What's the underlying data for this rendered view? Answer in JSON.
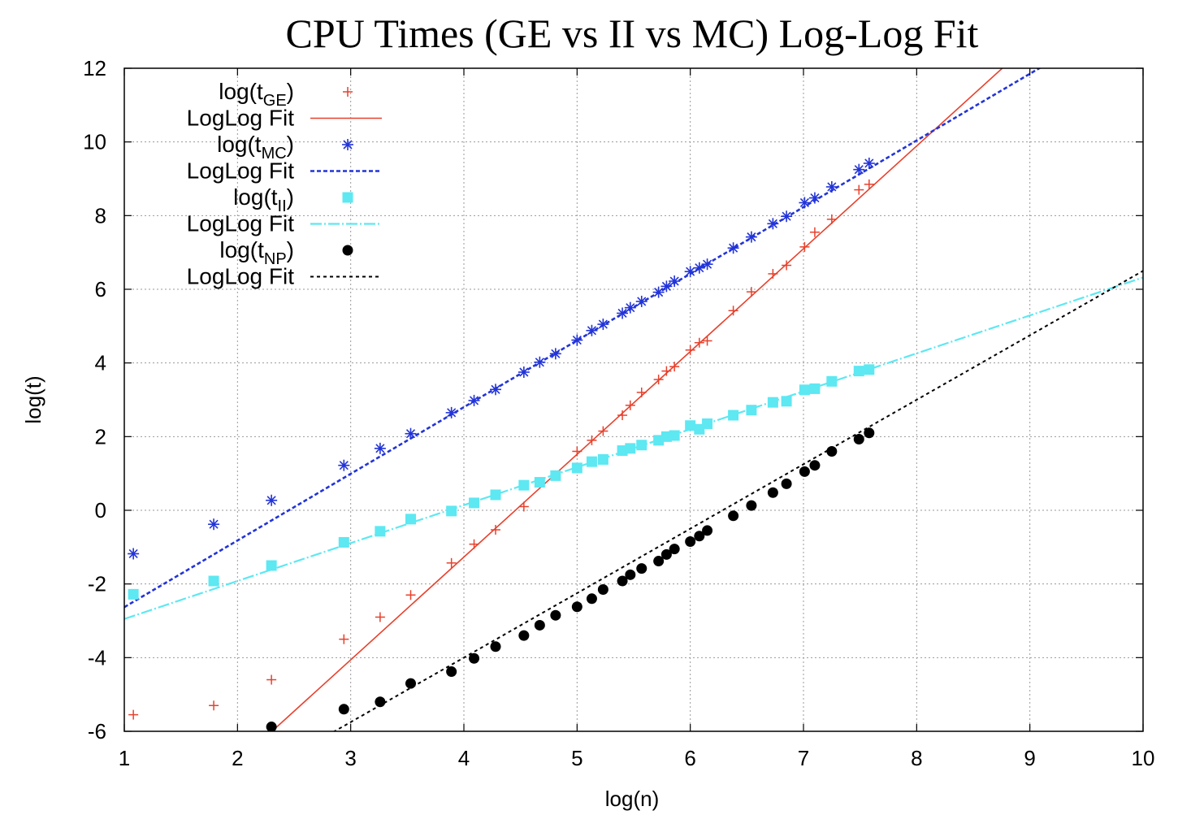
{
  "chart_data": {
    "type": "line",
    "title": "CPU Times (GE vs II vs MC) Log-Log Fit",
    "xlabel": "log(n)",
    "ylabel": "log(t)",
    "xlim": [
      1,
      10
    ],
    "ylim": [
      -6,
      12
    ],
    "xticks": [
      1,
      2,
      3,
      4,
      5,
      6,
      7,
      8,
      9,
      10
    ],
    "yticks": [
      -6,
      -4,
      -2,
      0,
      2,
      4,
      6,
      8,
      10,
      12
    ],
    "grid": true,
    "legend_position": "top-left",
    "series": [
      {
        "key": "ge",
        "name": "log(t",
        "subscript": "GE",
        "name_end": ")",
        "kind": "points",
        "marker": "plus",
        "color": "#e8412c",
        "x": [
          1.08,
          1.79,
          2.3,
          2.94,
          3.26,
          3.53,
          3.89,
          4.09,
          4.28,
          4.53,
          4.67,
          4.81,
          5.0,
          5.13,
          5.23,
          5.4,
          5.47,
          5.57,
          5.72,
          5.79,
          5.86,
          6.0,
          6.08,
          6.15,
          6.38,
          6.54,
          6.73,
          6.85,
          7.01,
          7.1,
          7.25,
          7.49,
          7.58
        ],
        "y": [
          -5.55,
          -5.3,
          -4.6,
          -3.5,
          -2.9,
          -2.3,
          -1.43,
          -0.92,
          -0.53,
          0.1,
          0.75,
          0.95,
          1.6,
          1.9,
          2.15,
          2.58,
          2.85,
          3.2,
          3.55,
          3.78,
          3.9,
          4.35,
          4.55,
          4.6,
          5.42,
          5.93,
          6.42,
          6.65,
          7.15,
          7.55,
          7.9,
          8.7,
          8.85
        ]
      },
      {
        "key": "ge-fit",
        "name": "LogLog Fit",
        "kind": "line",
        "color": "#e8412c",
        "dash": "none",
        "width": 1.6,
        "slope": 2.79,
        "intercept": -12.43
      },
      {
        "key": "mc",
        "name": "log(t",
        "subscript": "MC",
        "name_end": ")",
        "kind": "points",
        "marker": "star",
        "color": "#2234d8",
        "x": [
          1.08,
          1.79,
          2.3,
          2.94,
          3.26,
          3.53,
          3.89,
          4.09,
          4.28,
          4.53,
          4.67,
          4.81,
          5.0,
          5.13,
          5.23,
          5.4,
          5.47,
          5.57,
          5.72,
          5.79,
          5.86,
          6.0,
          6.08,
          6.15,
          6.38,
          6.54,
          6.73,
          6.85,
          7.01,
          7.1,
          7.25,
          7.49,
          7.58
        ],
        "y": [
          -1.18,
          -0.38,
          0.27,
          1.22,
          1.68,
          2.08,
          2.65,
          2.98,
          3.28,
          3.75,
          4.02,
          4.25,
          4.62,
          4.88,
          5.05,
          5.35,
          5.5,
          5.67,
          5.92,
          6.08,
          6.22,
          6.48,
          6.58,
          6.68,
          7.12,
          7.42,
          7.78,
          7.98,
          8.35,
          8.48,
          8.78,
          9.25,
          9.42
        ]
      },
      {
        "key": "mc-fit",
        "name": "LogLog Fit",
        "kind": "line",
        "color": "#2234d8",
        "dash": "5,3",
        "width": 2.6,
        "slope": 1.81,
        "intercept": -4.44
      },
      {
        "key": "ii",
        "name": "log(t",
        "subscript": "II",
        "name_end": ")",
        "kind": "points",
        "marker": "square",
        "color": "#5de8f2",
        "x": [
          1.08,
          1.79,
          2.3,
          2.94,
          3.26,
          3.53,
          3.89,
          4.09,
          4.28,
          4.53,
          4.67,
          4.81,
          5.0,
          5.13,
          5.23,
          5.4,
          5.47,
          5.57,
          5.72,
          5.79,
          5.86,
          6.0,
          6.08,
          6.15,
          6.38,
          6.54,
          6.73,
          6.85,
          7.01,
          7.1,
          7.25,
          7.49,
          7.58
        ],
        "y": [
          -2.28,
          -1.92,
          -1.5,
          -0.87,
          -0.57,
          -0.24,
          -0.02,
          0.2,
          0.42,
          0.68,
          0.76,
          0.94,
          1.15,
          1.32,
          1.38,
          1.62,
          1.68,
          1.77,
          1.9,
          2.0,
          2.03,
          2.3,
          2.2,
          2.35,
          2.58,
          2.72,
          2.93,
          2.96,
          3.27,
          3.3,
          3.5,
          3.78,
          3.82
        ]
      },
      {
        "key": "ii-fit",
        "name": "LogLog Fit",
        "kind": "line",
        "color": "#5de8f2",
        "dash": "14,3,2,3",
        "width": 2.2,
        "slope": 1.03,
        "intercept": -3.98
      },
      {
        "key": "np",
        "name": "log(t",
        "subscript": "NP",
        "name_end": ")",
        "kind": "points",
        "marker": "circle",
        "color": "#000000",
        "x": [
          2.3,
          2.94,
          3.26,
          3.53,
          3.89,
          4.09,
          4.28,
          4.53,
          4.67,
          4.81,
          5.0,
          5.13,
          5.23,
          5.4,
          5.47,
          5.57,
          5.72,
          5.79,
          5.86,
          6.0,
          6.08,
          6.15,
          6.38,
          6.54,
          6.73,
          6.85,
          7.01,
          7.1,
          7.25,
          7.49,
          7.58
        ],
        "y": [
          -5.88,
          -5.4,
          -5.2,
          -4.7,
          -4.38,
          -4.02,
          -3.7,
          -3.4,
          -3.12,
          -2.85,
          -2.62,
          -2.4,
          -2.15,
          -1.92,
          -1.75,
          -1.58,
          -1.38,
          -1.2,
          -1.05,
          -0.85,
          -0.7,
          -0.55,
          -0.15,
          0.13,
          0.48,
          0.72,
          1.05,
          1.22,
          1.6,
          1.93,
          2.1
        ]
      },
      {
        "key": "np-fit",
        "name": "LogLog Fit",
        "kind": "line",
        "color": "#000000",
        "dash": "4,4",
        "width": 2.0,
        "slope": 1.75,
        "intercept": -11.0
      }
    ]
  }
}
